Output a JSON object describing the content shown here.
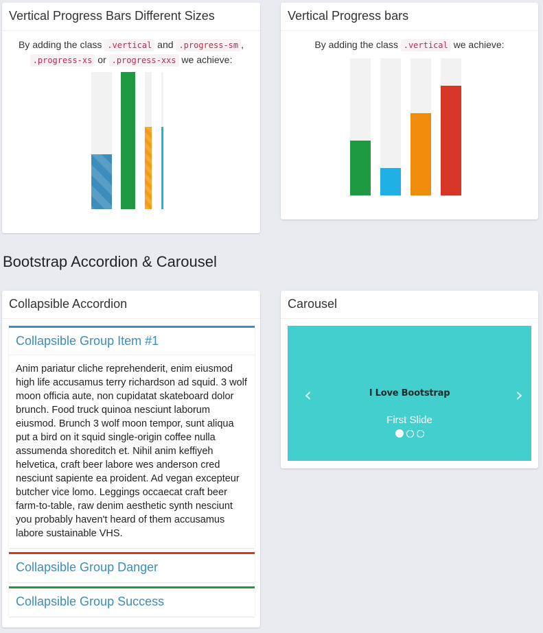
{
  "vertical_sizes_box": {
    "title": "Vertical Progress Bars Different Sizes",
    "desc_pre": "By adding the class ",
    "code_vertical": ".vertical",
    "desc_and": " and ",
    "code_sm": ".progress-sm",
    "desc_comma": ",",
    "code_xs": ".progress-xs",
    "desc_or": " or ",
    "code_xxs": ".progress-xxs",
    "desc_post": " we achieve:",
    "bars": [
      {
        "name": "default",
        "percent": 40,
        "color": "#3c8dbc",
        "striped": true
      },
      {
        "name": "sm",
        "percent": 100,
        "color": "#1e9a43",
        "striped": false
      },
      {
        "name": "xs",
        "percent": 60,
        "color": "#f39c12",
        "striped": true
      },
      {
        "name": "xxs",
        "percent": 60,
        "color": "#1fb1e6",
        "striped": false
      }
    ]
  },
  "vertical_box": {
    "title": "Vertical Progress bars",
    "desc_pre": "By adding the class ",
    "code_vertical": ".vertical",
    "desc_post": " we achieve:",
    "bars": [
      {
        "name": "success",
        "percent": 40,
        "color": "#1e9a43"
      },
      {
        "name": "info",
        "percent": 20,
        "color": "#1fb1e6"
      },
      {
        "name": "warning",
        "percent": 60,
        "color": "#ef8c0b"
      },
      {
        "name": "danger",
        "percent": 80,
        "color": "#d73526"
      }
    ]
  },
  "section": {
    "title": "Bootstrap Accordion & Carousel"
  },
  "accordion": {
    "title": "Collapsible Accordion",
    "items": [
      {
        "label": "Collapsible Group Item #1",
        "accent": "#3c8dbc",
        "body": "Anim pariatur cliche reprehenderit, enim eiusmod high life accusamus terry richardson ad squid. 3 wolf moon officia aute, non cupidatat skateboard dolor brunch. Food truck quinoa nesciunt laborum eiusmod. Brunch 3 wolf moon tempor, sunt aliqua put a bird on it squid single-origin coffee nulla assumenda shoreditch et. Nihil anim keffiyeh helvetica, craft beer labore wes anderson cred nesciunt sapiente ea proident. Ad vegan excepteur butcher vice lomo. Leggings occaecat craft beer farm-to-table, raw denim aesthetic synth nesciunt you probably haven't heard of them accusamus labore sustainable VHS."
      },
      {
        "label": "Collapsible Group Danger",
        "accent": "#d73526"
      },
      {
        "label": "Collapsible Group Success",
        "accent": "#1e9a43"
      }
    ]
  },
  "carousel": {
    "title": "Carousel",
    "slide_text": "I Love Bootstrap",
    "caption": "First Slide",
    "prev_icon": "chevron-left-icon",
    "next_icon": "chevron-right-icon",
    "bg_color": "#43cfcd",
    "active_index": 0,
    "slide_count": 3
  }
}
